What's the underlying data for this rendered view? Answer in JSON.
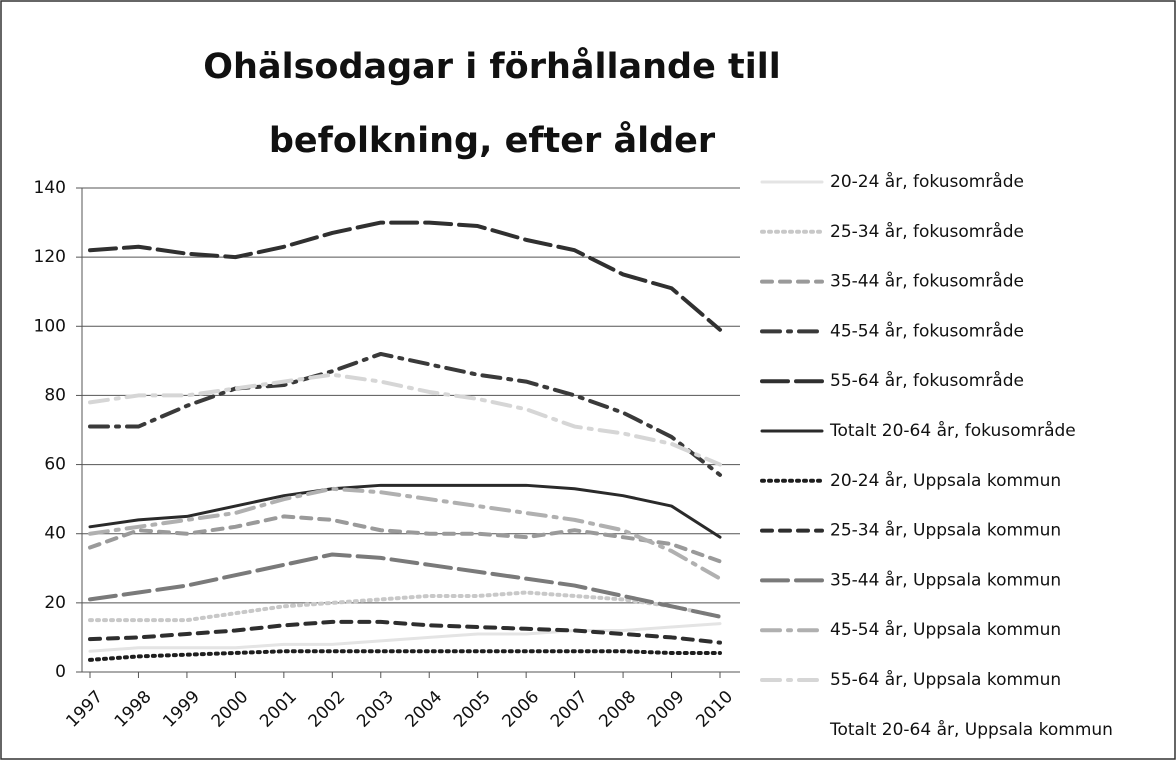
{
  "chart_data": {
    "type": "line",
    "title": [
      "Ohälsodagar i förhållande till",
      "befolkning, efter ålder"
    ],
    "categories": [
      "1997",
      "1998",
      "1999",
      "2000",
      "2001",
      "2002",
      "2003",
      "2004",
      "2005",
      "2006",
      "2007",
      "2008",
      "2009",
      "2010"
    ],
    "ylim": [
      0,
      140
    ],
    "yticks": [
      0,
      20,
      40,
      60,
      80,
      100,
      120,
      140
    ],
    "grid": true,
    "legend": "right",
    "series": [
      {
        "name": "20-24 år, fokusområde",
        "color": "#e4e4e4",
        "style": "solid",
        "values": [
          6,
          7,
          7,
          7,
          8,
          8,
          9,
          10,
          11,
          11,
          12,
          12,
          13,
          14
        ]
      },
      {
        "name": "25-34 år, fokusområde",
        "color": "#c8c8c8",
        "style": "dotted",
        "values": [
          15,
          15,
          15,
          17,
          19,
          20,
          21,
          22,
          22,
          23,
          22,
          21,
          19,
          16
        ]
      },
      {
        "name": "35-44 år, fokusområde",
        "color": "#9a9a9a",
        "style": "dash",
        "values": [
          36,
          41,
          40,
          42,
          45,
          44,
          41,
          40,
          40,
          39,
          41,
          39,
          37,
          32
        ]
      },
      {
        "name": "45-54 år, fokusområde",
        "color": "#3a3a3a",
        "style": "dash-dot",
        "values": [
          71,
          71,
          77,
          82,
          83,
          87,
          92,
          89,
          86,
          84,
          80,
          75,
          68,
          57
        ]
      },
      {
        "name": "55-64 år, fokusområde",
        "color": "#303030",
        "style": "long-dash",
        "values": [
          122,
          123,
          121,
          120,
          123,
          127,
          130,
          130,
          129,
          125,
          122,
          115,
          111,
          99
        ]
      },
      {
        "name": "Totalt 20-64 år, fokusområde",
        "color": "#2a2a2a",
        "style": "solid",
        "values": [
          42,
          44,
          45,
          48,
          51,
          53,
          54,
          54,
          54,
          54,
          53,
          51,
          48,
          39
        ]
      },
      {
        "name": "20-24 år, Uppsala kommun",
        "color": "#1e1e1e",
        "style": "dotted",
        "values": [
          3.5,
          4.5,
          5,
          5.5,
          6,
          6,
          6,
          6,
          6,
          6,
          6,
          6,
          5.5,
          5.5
        ]
      },
      {
        "name": "25-34 år, Uppsala kommun",
        "color": "#2e2e2e",
        "style": "dash",
        "values": [
          9.5,
          10,
          11,
          12,
          13.5,
          14.5,
          14.5,
          13.5,
          13,
          12.5,
          12,
          11,
          10,
          8.5
        ]
      },
      {
        "name": "35-44 år, Uppsala kommun",
        "color": "#7a7a7a",
        "style": "long-dash",
        "values": [
          21,
          23,
          25,
          28,
          31,
          34,
          33,
          31,
          29,
          27,
          25,
          22,
          19,
          16
        ]
      },
      {
        "name": "45-54 år, Uppsala kommun",
        "color": "#b0b0b0",
        "style": "dash-dot",
        "values": [
          40,
          42,
          44,
          46,
          50,
          53,
          52,
          50,
          48,
          46,
          44,
          41,
          35,
          27
        ]
      },
      {
        "name": "55-64 år, Uppsala kommun",
        "color": "#d6d6d6",
        "style": "dash-dot",
        "values": [
          78,
          80,
          80,
          82,
          84,
          86,
          84,
          81,
          79,
          76,
          71,
          69,
          66,
          60
        ]
      },
      {
        "name": "Totalt 20-64 år, Uppsala kommun",
        "color": "#ffffff",
        "style": "solid",
        "values": [
          null,
          null,
          null,
          null,
          null,
          null,
          null,
          null,
          null,
          null,
          null,
          null,
          null,
          null
        ]
      }
    ]
  }
}
